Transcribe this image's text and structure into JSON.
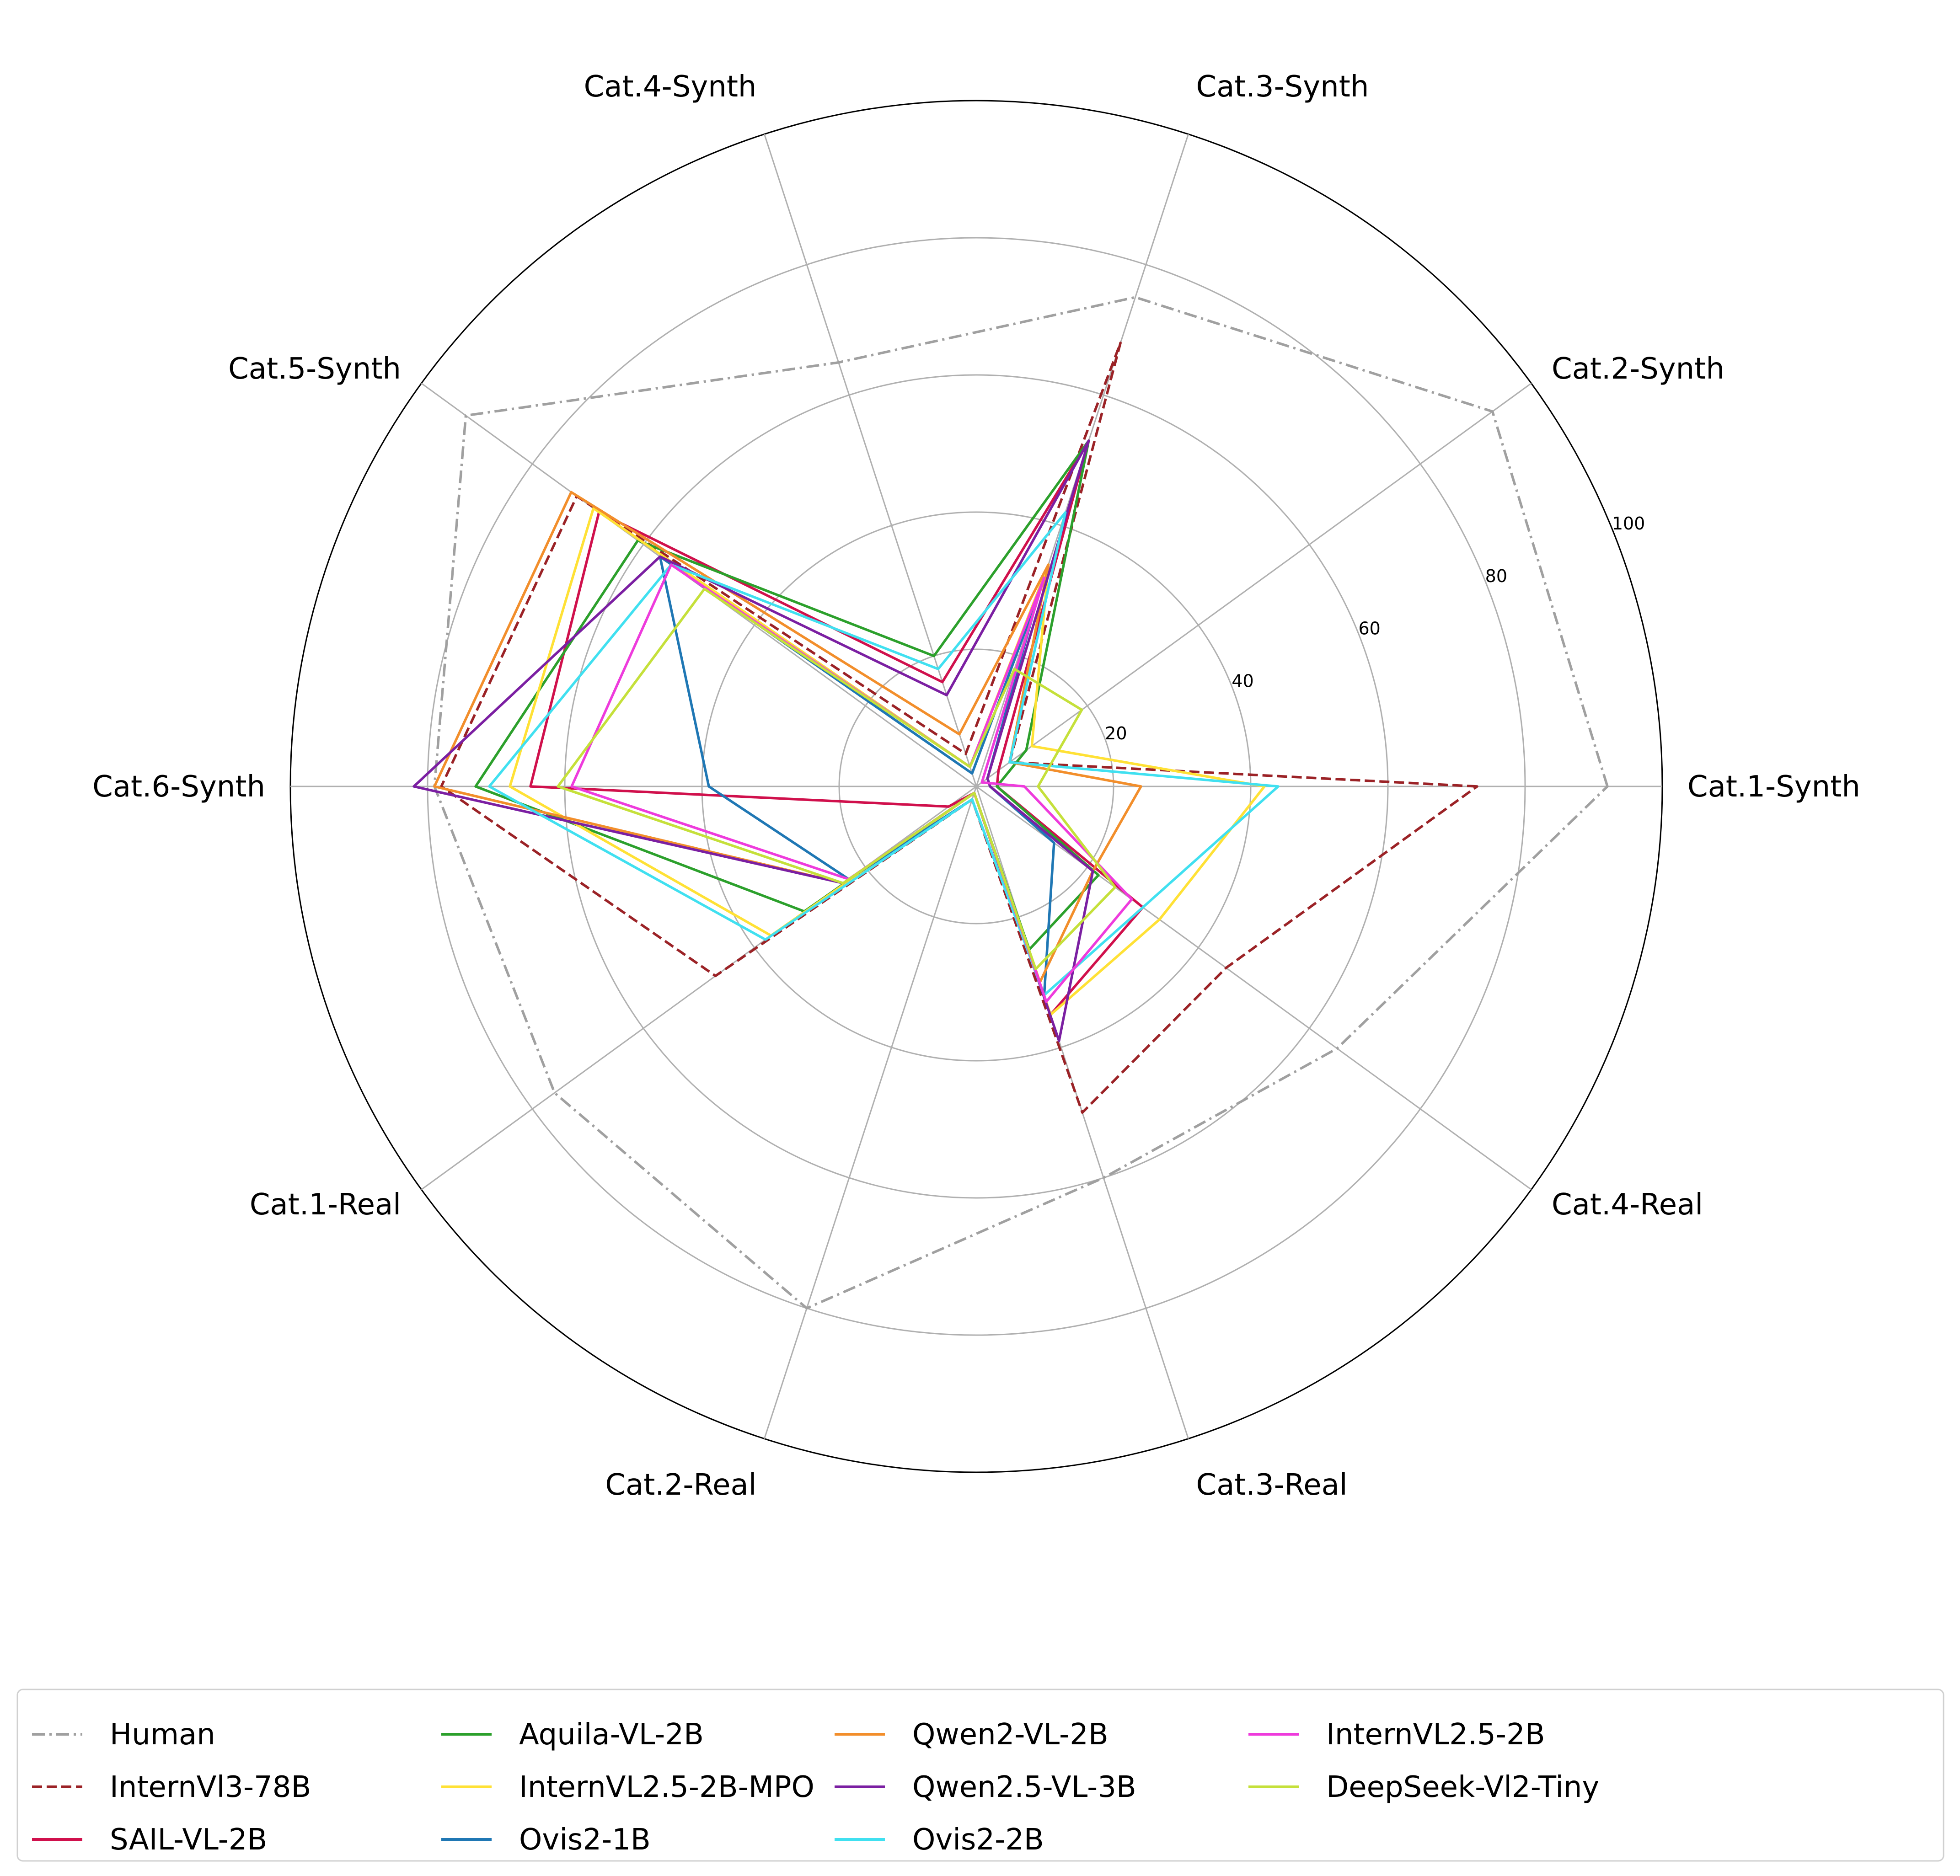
{
  "chart_data": {
    "type": "radar",
    "title": "",
    "categories": [
      "Cat.1-Synth",
      "Cat.2-Synth",
      "Cat.3-Synth",
      "Cat.4-Synth",
      "Cat.5-Synth",
      "Cat.6-Synth",
      "Cat.1-Real",
      "Cat.2-Real",
      "Cat.3-Real",
      "Cat.4-Real"
    ],
    "rlim": [
      0,
      100
    ],
    "rticks": [
      "20",
      "40",
      "60",
      "80",
      "100"
    ],
    "grid": true,
    "legend_position": "bottom",
    "series": [
      {
        "name": "Human",
        "color": "#a0a0a0",
        "dash": "dashdot",
        "fill": true,
        "values": [
          92,
          93,
          75,
          65,
          92,
          79,
          76,
          80,
          60,
          65
        ]
      },
      {
        "name": "InternVl3-78B",
        "color": "#9b2226",
        "dash": "dashed",
        "fill": true,
        "values": [
          73,
          6,
          68,
          5,
          72,
          78,
          47,
          2,
          50,
          45
        ]
      },
      {
        "name": "SAIL-VL-2B",
        "color": "#d0104c",
        "dash": "solid",
        "fill": false,
        "values": [
          3,
          4,
          53,
          16,
          68,
          65,
          5,
          1,
          35,
          30
        ]
      },
      {
        "name": "Aquila-VL-2B",
        "color": "#2ca02c",
        "dash": "solid",
        "fill": false,
        "values": [
          3,
          9,
          53,
          20,
          61,
          73,
          31,
          1,
          25,
          22
        ]
      },
      {
        "name": "InternVL2.5-2B-MPO",
        "color": "#ffe135",
        "dash": "solid",
        "fill": false,
        "values": [
          42,
          10,
          34,
          3,
          69,
          68,
          37,
          1,
          35,
          33
        ]
      },
      {
        "name": "Ovis2-1B",
        "color": "#1f77b4",
        "dash": "solid",
        "fill": false,
        "values": [
          2,
          2,
          29,
          2,
          57,
          39,
          23,
          2,
          32,
          14
        ]
      },
      {
        "name": "Qwen2-VL-2B",
        "color": "#f28e2b",
        "dash": "solid",
        "fill": false,
        "values": [
          24,
          6,
          34,
          8,
          73,
          79,
          24,
          1,
          30,
          21
        ]
      },
      {
        "name": "Qwen2.5-VL-3B",
        "color": "#7b1fa2",
        "dash": "solid",
        "fill": false,
        "values": [
          2,
          2,
          53,
          14,
          57,
          82,
          24,
          1,
          39,
          21
        ]
      },
      {
        "name": "Ovis2-2B",
        "color": "#40e0f0",
        "dash": "solid",
        "fill": false,
        "values": [
          44,
          6,
          42,
          18,
          55,
          71,
          38,
          2,
          32,
          30
        ]
      },
      {
        "name": "InternVL2.5-2B",
        "color": "#ee3bdc",
        "dash": "solid",
        "fill": false,
        "values": [
          7,
          1,
          32,
          3,
          55,
          59,
          23,
          1,
          33,
          28
        ]
      },
      {
        "name": "DeepSeek-Vl2-Tiny",
        "color": "#c5e03a",
        "dash": "solid",
        "fill": false,
        "values": [
          9,
          19,
          18,
          3,
          49,
          61,
          24,
          1,
          28,
          25
        ]
      }
    ]
  }
}
